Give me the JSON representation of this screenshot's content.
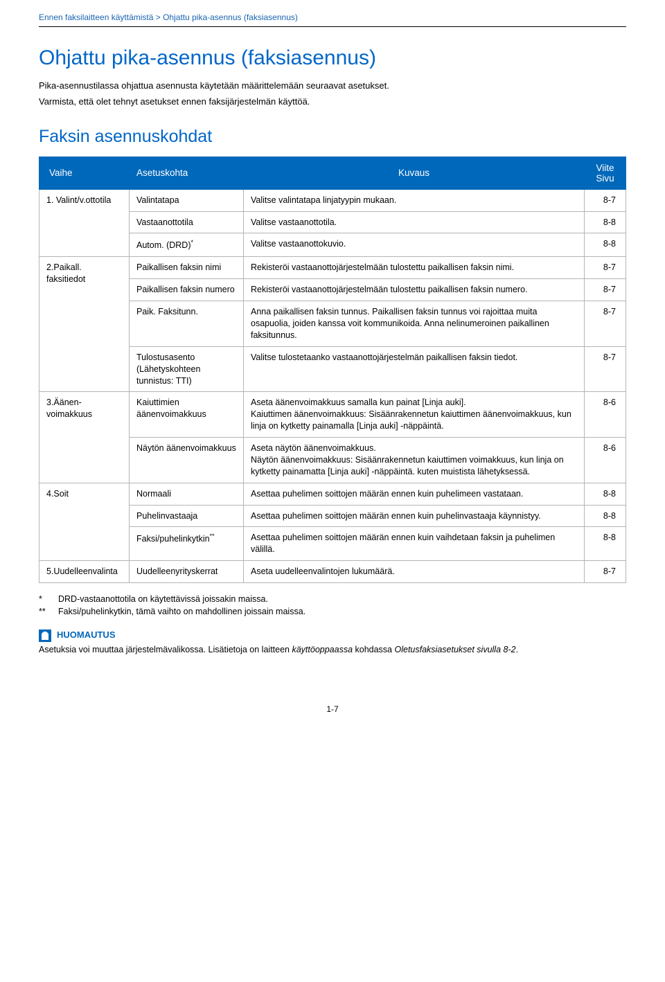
{
  "breadcrumb": "Ennen faksilaitteen käyttämistä > Ohjattu pika-asennus (faksiasennus)",
  "h1": "Ohjattu pika-asennus (faksiasennus)",
  "intro1": "Pika-asennustilassa ohjattua asennusta käytetään määrittelemään seuraavat asetukset.",
  "intro2": "Varmista, että olet tehnyt asetukset ennen faksijärjestelmän käyttöä.",
  "h2": "Faksin asennuskohdat",
  "table": {
    "headers": {
      "vaihe": "Vaihe",
      "asetuskohta": "Asetuskohta",
      "kuvaus": "Kuvaus",
      "viite": "Viite Sivu"
    },
    "rows": [
      {
        "vaihe": "1. Valint/v.ottotila",
        "asetus": "Valintatapa",
        "kuvaus": "Valitse valintatapa linjatyypin mukaan.",
        "viite": "8-7",
        "rowspan_vaihe": 3
      },
      {
        "asetus": "Vastaanottotila",
        "kuvaus": "Valitse vastaanottotila.",
        "viite": "8-8"
      },
      {
        "asetus_html": "Autom. (DRD)<sup>*</sup>",
        "kuvaus": "Valitse vastaanottokuvio.",
        "viite": "8-8"
      },
      {
        "vaihe": "2.Paikall. faksitiedot",
        "asetus": "Paikallisen faksin nimi",
        "kuvaus": "Rekisteröi vastaanottojärjestelmään tulostettu paikallisen faksin nimi.",
        "viite": "8-7",
        "rowspan_vaihe": 4
      },
      {
        "asetus": "Paikallisen faksin numero",
        "kuvaus": "Rekisteröi vastaanottojärjestelmään tulostettu paikallisen faksin numero.",
        "viite": "8-7"
      },
      {
        "asetus": "Paik. Faksitunn.",
        "kuvaus": "Anna paikallisen faksin tunnus. Paikallisen faksin tunnus voi rajoittaa muita osapuolia, joiden kanssa voit kommunikoida. Anna nelinumeroinen paikallinen faksitunnus.",
        "viite": "8-7"
      },
      {
        "asetus": "Tulostusasento (Lähetyskohteen tunnistus: TTI)",
        "kuvaus": "Valitse tulostetaanko vastaanottojärjestelmän paikallisen faksin tiedot.",
        "viite": "8-7"
      },
      {
        "vaihe": "3.Äänen-voimakkuus",
        "asetus": "Kaiuttimien äänenvoimakkuus",
        "kuvaus": "Aseta äänenvoimakkuus samalla kun painat [Linja auki].\nKaiuttimen äänenvoimakkuus: Sisäänrakennetun kaiuttimen äänenvoimakkuus, kun linja on kytketty painamalla [Linja auki] -näppäintä.",
        "viite": "8-6",
        "rowspan_vaihe": 2
      },
      {
        "asetus": "Näytön äänenvoimakkuus",
        "kuvaus": "Aseta näytön äänenvoimakkuus.\nNäytön äänenvoimakkuus: Sisäänrakennetun kaiuttimen voimakkuus, kun linja on kytketty painamatta [Linja auki] -näppäintä. kuten muistista lähetyksessä.",
        "viite": "8-6"
      },
      {
        "vaihe": "4.Soit",
        "asetus": "Normaali",
        "kuvaus": "Asettaa puhelimen soittojen määrän ennen kuin puhelimeen vastataan.",
        "viite": "8-8",
        "rowspan_vaihe": 3
      },
      {
        "asetus": "Puhelinvastaaja",
        "kuvaus": "Asettaa puhelimen soittojen määrän ennen kuin puhelinvastaaja käynnistyy.",
        "viite": "8-8"
      },
      {
        "asetus_html": "Faksi/puhelinkytkin<sup>**</sup>",
        "kuvaus": "Asettaa puhelimen soittojen määrän ennen kuin vaihdetaan faksin ja puhelimen välillä.",
        "viite": "8-8"
      },
      {
        "vaihe": "5.Uudelleenvalinta",
        "asetus": "Uudelleenyrityskerrat",
        "kuvaus": "Aseta uudelleenvalintojen lukumäärä.",
        "viite": "8-7"
      }
    ]
  },
  "footnotes": [
    {
      "mark": "*",
      "text": "DRD-vastaanottotila on käytettävissä joissakin maissa."
    },
    {
      "mark": "**",
      "text": "Faksi/puhelinkytkin, tämä vaihto on mahdollinen joissain maissa."
    }
  ],
  "note": {
    "title": "HUOMAUTUS",
    "text_before": "Asetuksia voi muuttaa järjestelmävalikossa. Lisätietoja on laitteen ",
    "italic1": "käyttöoppaassa",
    "text_mid": " kohdassa ",
    "italic2": "Oletusfaksiasetukset sivulla 8-2",
    "text_after": "."
  },
  "pagenum": "1-7"
}
